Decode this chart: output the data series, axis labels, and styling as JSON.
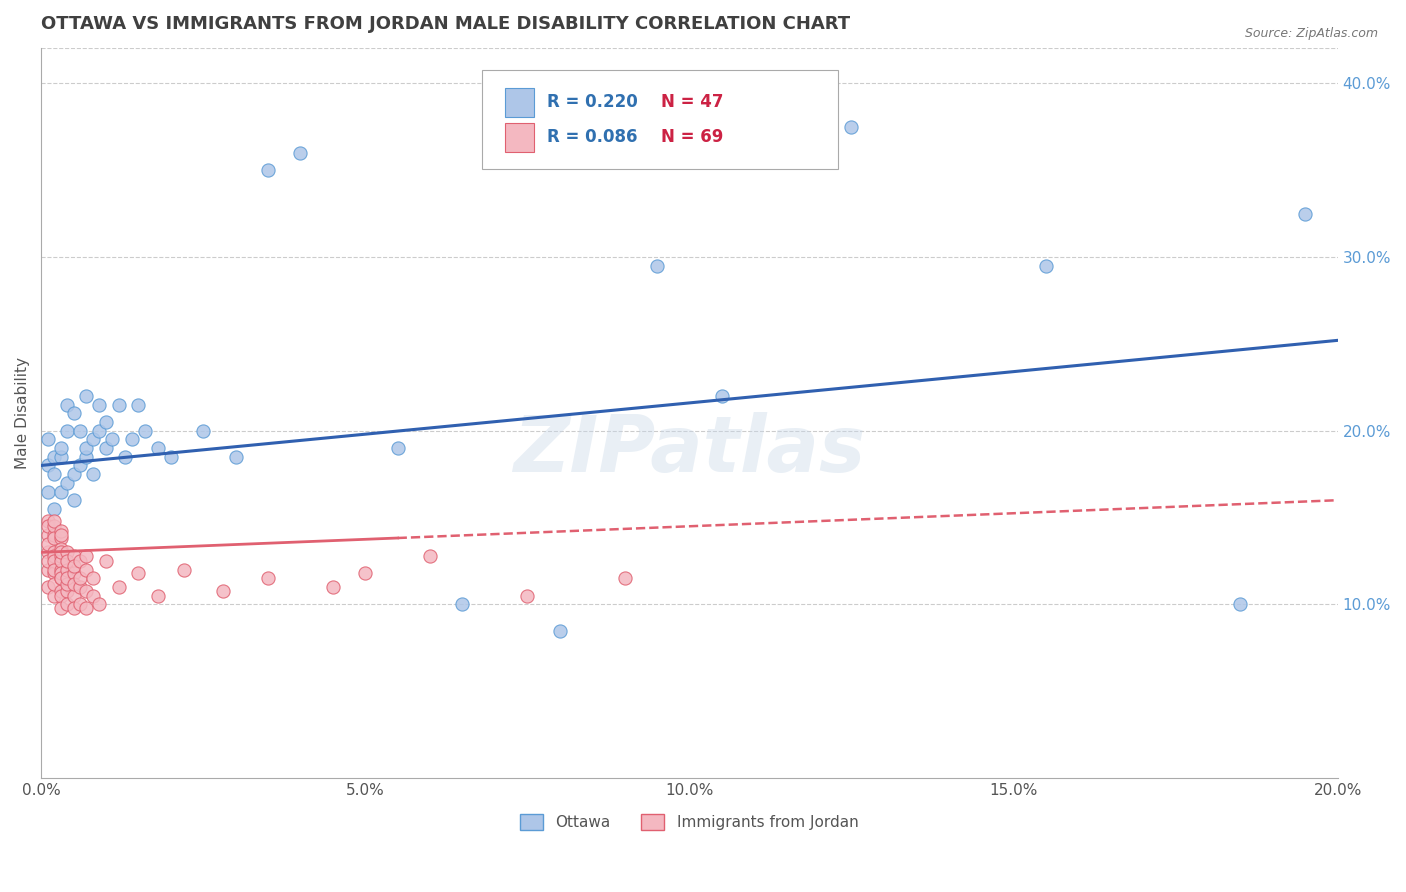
{
  "title": "OTTAWA VS IMMIGRANTS FROM JORDAN MALE DISABILITY CORRELATION CHART",
  "source_text": "Source: ZipAtlas.com",
  "ylabel": "Male Disability",
  "xlim": [
    0.0,
    0.2
  ],
  "ylim": [
    0.0,
    0.42
  ],
  "xticks": [
    0.0,
    0.05,
    0.1,
    0.15,
    0.2
  ],
  "xtick_labels": [
    "0.0%",
    "5.0%",
    "10.0%",
    "15.0%",
    "20.0%"
  ],
  "yticks": [
    0.1,
    0.2,
    0.3,
    0.4
  ],
  "ytick_labels": [
    "10.0%",
    "20.0%",
    "30.0%",
    "40.0%"
  ],
  "series1_name": "Ottawa",
  "series1_color": "#aec6e8",
  "series1_edge_color": "#5b9bd5",
  "series1_R": 0.22,
  "series1_N": 47,
  "series2_name": "Immigrants from Jordan",
  "series2_color": "#f4b8c1",
  "series2_edge_color": "#e06070",
  "series2_R": 0.086,
  "series2_N": 69,
  "trend1_color": "#3060b0",
  "trend2_color": "#e06070",
  "trend2_solid_end": 0.055,
  "watermark": "ZIPatlas",
  "background_color": "#ffffff",
  "grid_color": "#cccccc",
  "title_color": "#404040",
  "title_fontsize": 13,
  "series1_x": [
    0.001,
    0.001,
    0.001,
    0.002,
    0.002,
    0.002,
    0.003,
    0.003,
    0.003,
    0.004,
    0.004,
    0.004,
    0.005,
    0.005,
    0.005,
    0.006,
    0.006,
    0.007,
    0.007,
    0.007,
    0.008,
    0.008,
    0.009,
    0.009,
    0.01,
    0.01,
    0.011,
    0.012,
    0.013,
    0.014,
    0.015,
    0.016,
    0.018,
    0.02,
    0.025,
    0.03,
    0.035,
    0.04,
    0.055,
    0.065,
    0.08,
    0.095,
    0.105,
    0.125,
    0.155,
    0.185,
    0.195
  ],
  "series1_y": [
    0.18,
    0.195,
    0.165,
    0.175,
    0.185,
    0.155,
    0.185,
    0.19,
    0.165,
    0.2,
    0.215,
    0.17,
    0.175,
    0.21,
    0.16,
    0.2,
    0.18,
    0.185,
    0.22,
    0.19,
    0.195,
    0.175,
    0.2,
    0.215,
    0.19,
    0.205,
    0.195,
    0.215,
    0.185,
    0.195,
    0.215,
    0.2,
    0.19,
    0.185,
    0.2,
    0.185,
    0.35,
    0.36,
    0.19,
    0.1,
    0.085,
    0.295,
    0.22,
    0.375,
    0.295,
    0.1,
    0.325
  ],
  "series2_x": [
    0.001,
    0.001,
    0.001,
    0.001,
    0.001,
    0.001,
    0.001,
    0.001,
    0.002,
    0.002,
    0.002,
    0.002,
    0.002,
    0.002,
    0.002,
    0.002,
    0.002,
    0.002,
    0.002,
    0.003,
    0.003,
    0.003,
    0.003,
    0.003,
    0.003,
    0.003,
    0.003,
    0.003,
    0.003,
    0.003,
    0.003,
    0.003,
    0.003,
    0.004,
    0.004,
    0.004,
    0.004,
    0.004,
    0.004,
    0.004,
    0.005,
    0.005,
    0.005,
    0.005,
    0.005,
    0.005,
    0.006,
    0.006,
    0.006,
    0.006,
    0.007,
    0.007,
    0.007,
    0.007,
    0.008,
    0.008,
    0.009,
    0.01,
    0.012,
    0.015,
    0.018,
    0.022,
    0.028,
    0.035,
    0.045,
    0.05,
    0.06,
    0.075,
    0.09
  ],
  "series2_y": [
    0.14,
    0.13,
    0.148,
    0.12,
    0.135,
    0.125,
    0.145,
    0.11,
    0.13,
    0.14,
    0.118,
    0.145,
    0.128,
    0.148,
    0.125,
    0.138,
    0.12,
    0.105,
    0.112,
    0.115,
    0.128,
    0.138,
    0.12,
    0.108,
    0.125,
    0.118,
    0.132,
    0.105,
    0.098,
    0.142,
    0.115,
    0.13,
    0.14,
    0.12,
    0.108,
    0.13,
    0.112,
    0.125,
    0.1,
    0.115,
    0.118,
    0.105,
    0.128,
    0.112,
    0.098,
    0.122,
    0.11,
    0.125,
    0.1,
    0.115,
    0.108,
    0.12,
    0.098,
    0.128,
    0.105,
    0.115,
    0.1,
    0.125,
    0.11,
    0.118,
    0.105,
    0.12,
    0.108,
    0.115,
    0.11,
    0.118,
    0.128,
    0.105,
    0.115
  ],
  "trend1_x0": 0.0,
  "trend1_y0": 0.18,
  "trend1_x1": 0.2,
  "trend1_y1": 0.252,
  "trend2_x0": 0.0,
  "trend2_y0": 0.13,
  "trend2_x1": 0.2,
  "trend2_y1": 0.16
}
